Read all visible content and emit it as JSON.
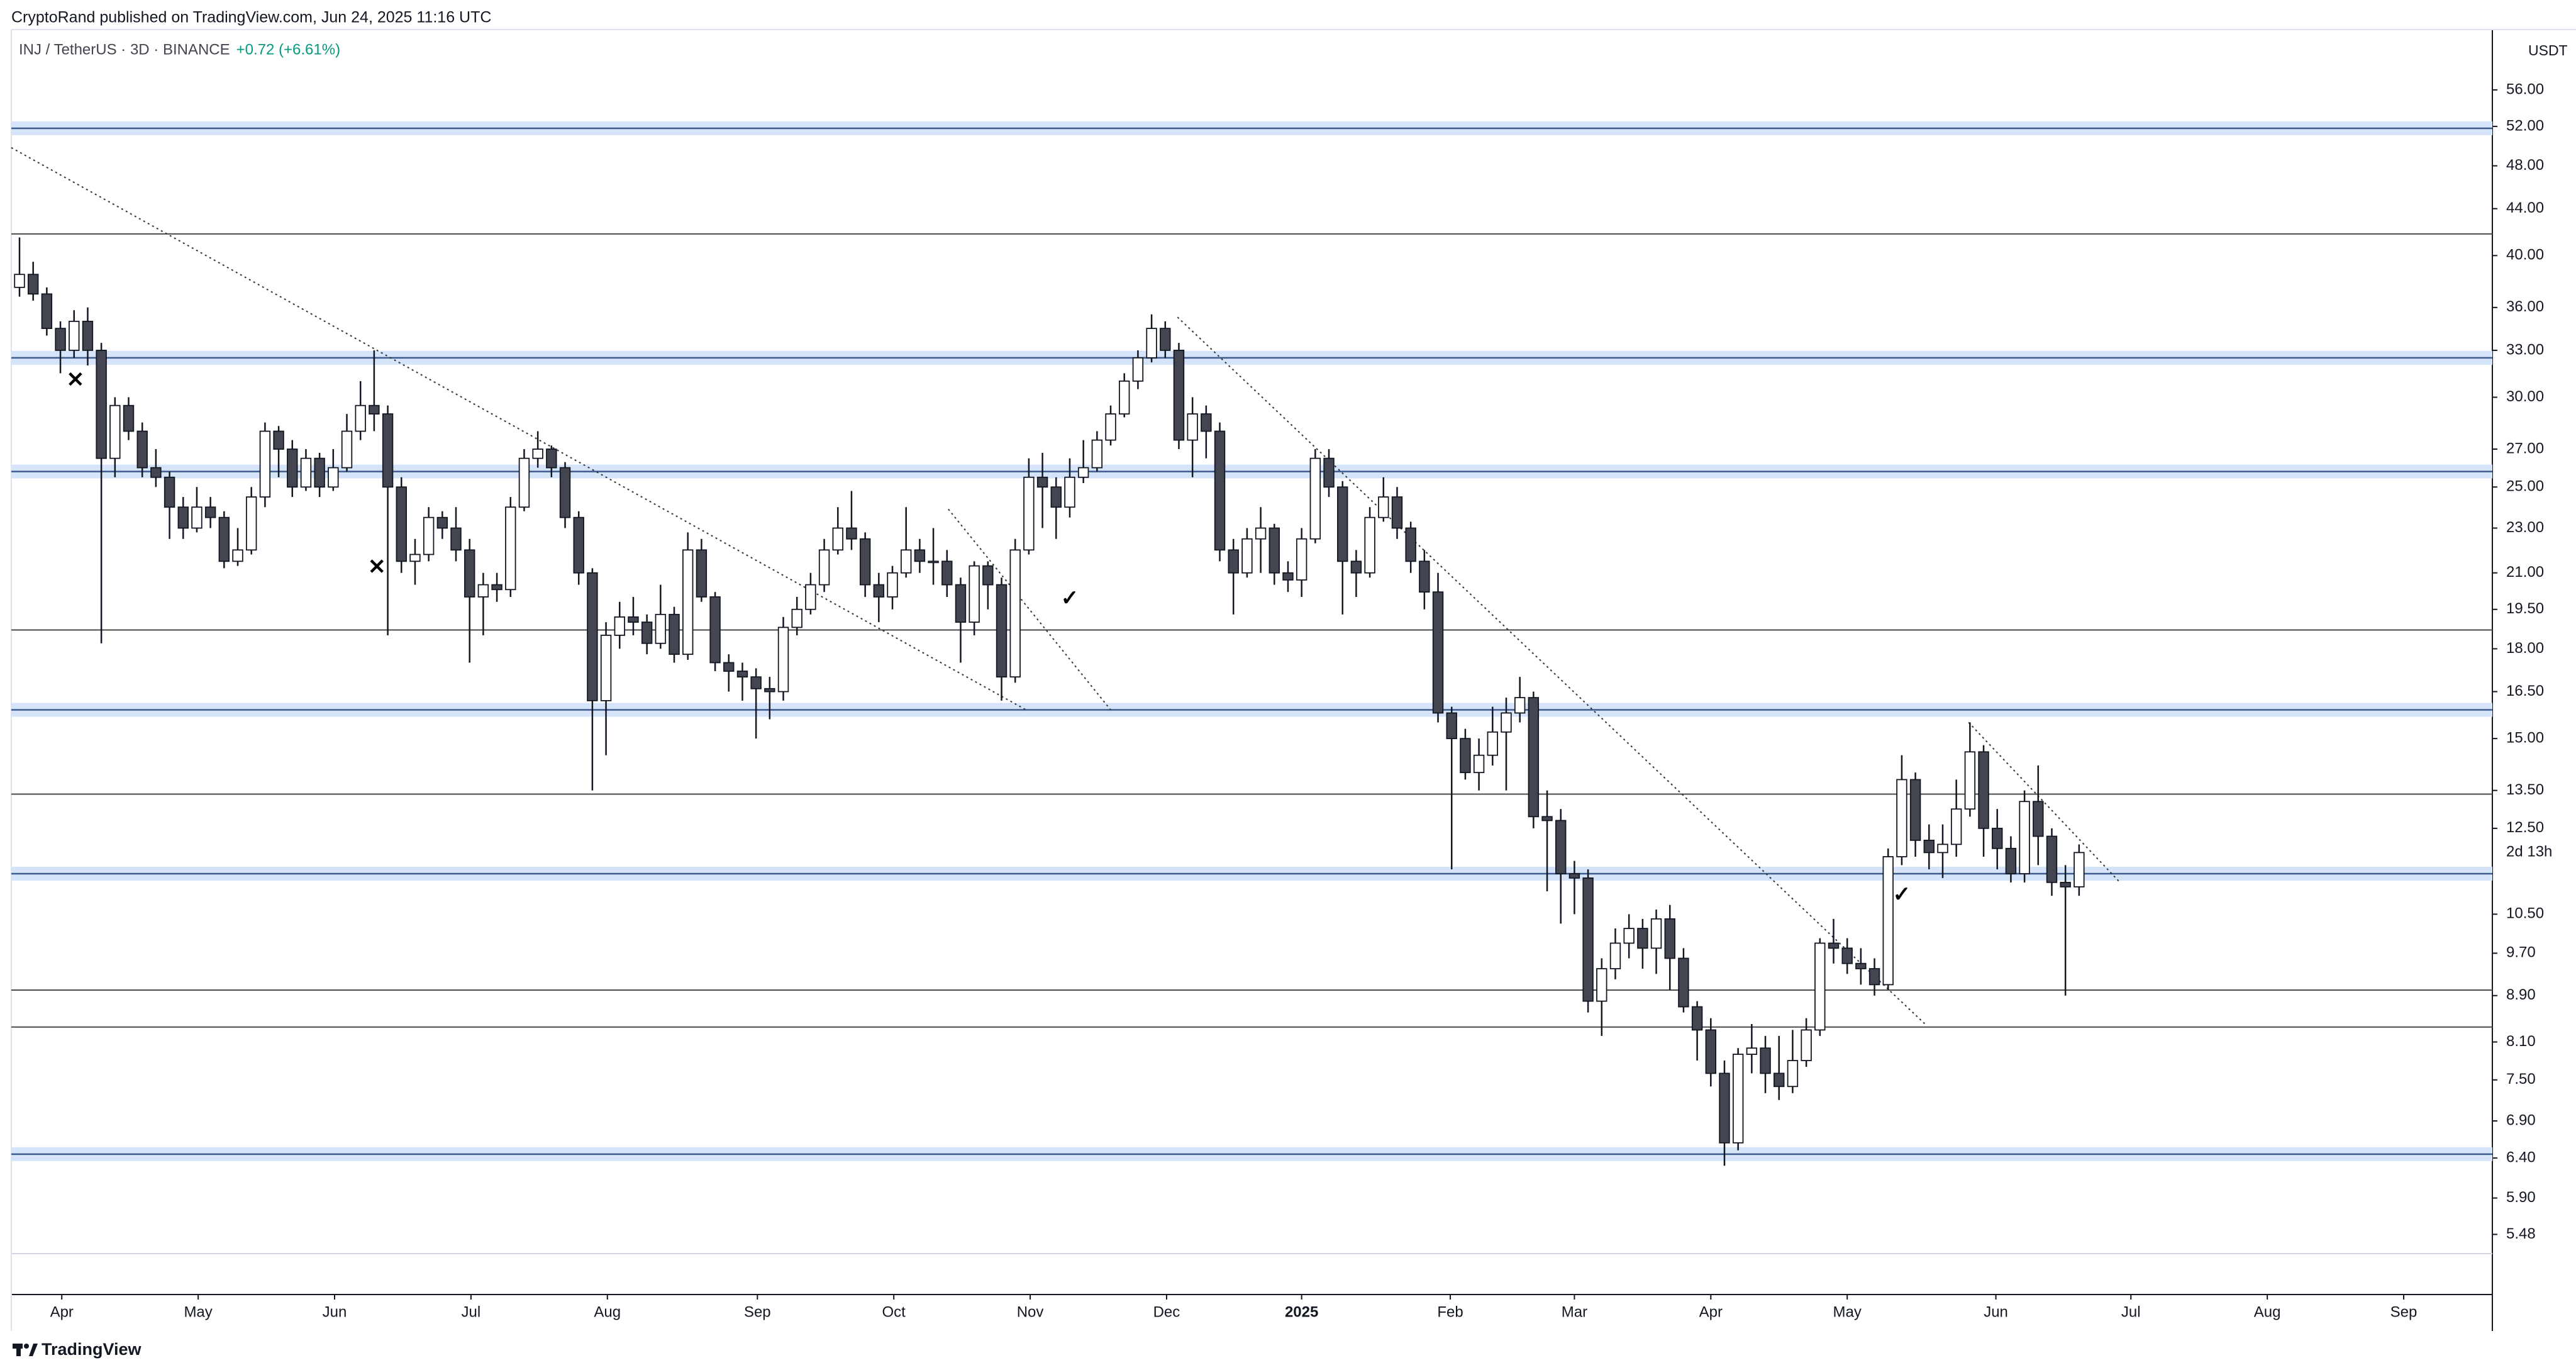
{
  "chart_data": {
    "type": "candlestick",
    "header": "CryptoRand published on TradingView.com, Jun 24, 2025 11:16 UTC",
    "title": "INJ / TetherUS · 3D · BINANCE",
    "change_label": "+0.72 (+6.61%)",
    "y_unit": "USDT",
    "countdown": "2d 13h",
    "brand": "TradingView",
    "log_scale": true,
    "up_color": "#ffffff",
    "down_color": "#434651",
    "line_color": "#131722",
    "change_color": "#089981",
    "open": [
      37.5,
      38.5,
      37,
      34.5,
      33,
      35,
      33,
      26.5,
      29.5,
      28,
      26,
      25.5,
      24,
      23,
      24,
      23.5,
      21.5,
      22,
      24.5,
      28,
      27,
      25,
      26.5,
      25,
      26,
      28,
      29.5,
      29,
      25,
      21.5,
      21.8,
      23.5,
      23,
      22,
      20,
      20.5,
      20.3,
      24,
      26.5,
      27,
      26,
      23.5,
      21,
      16.2,
      18.5,
      19.2,
      19,
      18.2,
      19.3,
      17.8,
      22,
      20,
      17.5,
      17.2,
      17,
      16.6,
      16.5,
      18.8,
      19.5,
      20.5,
      22,
      23,
      22.5,
      20.5,
      20,
      21,
      22,
      21.5,
      21.5,
      20.5,
      19,
      21.3,
      20.5,
      17,
      22,
      25.5,
      25,
      24,
      25.5,
      26,
      27.5,
      29,
      31,
      32.5,
      34.5,
      33,
      27.5,
      29,
      28,
      22,
      21,
      22.5,
      23,
      21,
      20.7,
      22.5,
      26.5,
      25,
      21.5,
      21,
      23.5,
      24.5,
      23,
      21.5,
      20.2,
      15.8,
      15,
      14,
      14.5,
      15.2,
      15.8,
      16.3,
      12.8,
      12.7,
      11.4,
      11.3,
      8.8,
      9.4,
      9.9,
      10.2,
      9.8,
      10.4,
      9.6,
      8.7,
      8.3,
      7.6,
      6.6,
      7.9,
      8.0,
      7.6,
      7.4,
      7.8,
      8.3,
      9.9,
      9.8,
      9.5,
      9.4,
      9.1,
      11.8,
      13.8,
      12.2,
      11.9,
      12.1,
      13,
      14.6,
      12.5,
      12,
      11.4,
      13.2,
      12.3,
      11.2,
      11.1
    ],
    "high": [
      41.5,
      39.5,
      37.5,
      35,
      35.8,
      36,
      33.5,
      30,
      30,
      28.5,
      27,
      25.8,
      24.5,
      25,
      24.5,
      23.8,
      23,
      25,
      28.5,
      28.3,
      27.5,
      27,
      26.8,
      27,
      29,
      31,
      33,
      29.5,
      25.5,
      22.5,
      24,
      23.8,
      24,
      22.5,
      21,
      21,
      24.5,
      27,
      28,
      27.2,
      26.3,
      23.8,
      21.2,
      19,
      19.8,
      20,
      19.3,
      20.5,
      19.6,
      22.8,
      22.5,
      20.2,
      17.8,
      17.5,
      17.3,
      17,
      19.2,
      20,
      21,
      22.5,
      24,
      24.8,
      22.8,
      21,
      21.3,
      24,
      22.5,
      23,
      22,
      20.8,
      21.5,
      21.5,
      20.8,
      22.5,
      26.5,
      26.8,
      25.5,
      26.5,
      27.5,
      28,
      29.5,
      31.5,
      33,
      35.5,
      35,
      33.5,
      30,
      29.5,
      28.5,
      22.5,
      23,
      24,
      23.2,
      21.5,
      23,
      27,
      27,
      25.3,
      22,
      24,
      25.5,
      25,
      23.3,
      22,
      21,
      16,
      15.3,
      15,
      16,
      16.3,
      17,
      16.5,
      13.5,
      13,
      11.7,
      11.5,
      9.6,
      10.2,
      10.5,
      10.4,
      10.6,
      10.7,
      9.8,
      8.8,
      8.5,
      7.8,
      8,
      8.4,
      8.2,
      8.2,
      8.3,
      8.5,
      10,
      10.4,
      10,
      9.8,
      9.6,
      12,
      14.5,
      14,
      12.6,
      12.6,
      13.8,
      15.5,
      14.8,
      13,
      12.3,
      13.5,
      14.2,
      12.5,
      11.6,
      12.1
    ],
    "low": [
      36.8,
      36.5,
      34,
      31.5,
      32.5,
      32,
      18.2,
      25.5,
      27.5,
      25.5,
      25,
      22.5,
      22.5,
      22.8,
      23,
      21.2,
      21.3,
      21.8,
      24,
      25.5,
      24.5,
      24.8,
      24.5,
      24.8,
      25.8,
      27.5,
      28,
      18.5,
      21,
      20.5,
      21.5,
      22.5,
      21.5,
      17.5,
      18.5,
      19.8,
      20,
      23.8,
      26,
      25.5,
      23,
      20.5,
      13.5,
      14.5,
      18,
      18.5,
      17.8,
      18,
      17.5,
      17.6,
      19.8,
      17.2,
      16.5,
      16.2,
      15,
      15.6,
      16.2,
      18.5,
      19.3,
      20.2,
      21.8,
      22,
      20,
      19,
      19.5,
      20.8,
      21,
      20.5,
      20,
      17.5,
      18.5,
      19.5,
      16.2,
      16.8,
      21.8,
      23,
      22.5,
      23.5,
      25.2,
      25.8,
      27.2,
      28.8,
      30.5,
      32.2,
      32.5,
      27,
      25.5,
      26.5,
      21.5,
      19.3,
      20.8,
      21,
      20.5,
      20.2,
      20,
      22.3,
      24.5,
      19.3,
      20,
      20.8,
      23.3,
      22.5,
      21,
      19.5,
      15.5,
      11.5,
      13.8,
      13.5,
      14.2,
      13.5,
      15.5,
      12.5,
      11,
      10.3,
      10.5,
      8.6,
      8.2,
      9.2,
      9.6,
      9.4,
      9.3,
      9,
      8.6,
      7.8,
      7.4,
      6.3,
      6.5,
      7.6,
      7.3,
      7.2,
      7.3,
      7.7,
      8.2,
      9.5,
      9.3,
      9.1,
      8.9,
      9,
      11.6,
      11.8,
      11.5,
      11.3,
      11.8,
      12.8,
      11.8,
      11.5,
      11.2,
      11.2,
      11.6,
      10.9,
      8.9,
      10.9
    ],
    "close": [
      38.5,
      37,
      34.5,
      33,
      35,
      33,
      26.5,
      29.5,
      28,
      26,
      25.5,
      24,
      23,
      24,
      23.5,
      21.5,
      22,
      24.5,
      28,
      27,
      25,
      26.5,
      25,
      26,
      28,
      29.5,
      29,
      25,
      21.5,
      21.8,
      23.5,
      23,
      22,
      20,
      20.5,
      20.3,
      24,
      26.5,
      27,
      26,
      23.5,
      21,
      16.2,
      18.5,
      19.2,
      19,
      18.2,
      19.3,
      17.8,
      22,
      20,
      17.5,
      17.2,
      17,
      16.6,
      16.5,
      18.8,
      19.5,
      20.5,
      22,
      23,
      22.5,
      20.5,
      20,
      21,
      22,
      21.5,
      21.5,
      20.5,
      19,
      21.3,
      20.5,
      17,
      22,
      25.5,
      25,
      24,
      25.5,
      26,
      27.5,
      29,
      31,
      32.5,
      34.5,
      33,
      27.5,
      29,
      28,
      22,
      21,
      22.5,
      23,
      21,
      20.7,
      22.5,
      26.5,
      25,
      21.5,
      21,
      23.5,
      24.5,
      23,
      21.5,
      20.2,
      15.8,
      15,
      14,
      14.5,
      15.2,
      15.8,
      16.3,
      12.8,
      12.7,
      11.4,
      11.3,
      8.8,
      9.4,
      9.9,
      10.2,
      9.8,
      10.4,
      9.6,
      8.7,
      8.3,
      7.6,
      6.6,
      7.9,
      8.0,
      7.6,
      7.4,
      7.8,
      8.3,
      9.9,
      9.8,
      9.5,
      9.4,
      9.1,
      11.8,
      13.8,
      12.2,
      11.9,
      12.1,
      13,
      14.6,
      12.5,
      12,
      11.4,
      13.2,
      12.3,
      11.2,
      11.1,
      11.9
    ],
    "ylim": [
      5.27,
      63.3
    ],
    "yticks": [
      {
        "value": 56,
        "label": "56.00"
      },
      {
        "value": 52,
        "label": "52.00"
      },
      {
        "value": 48,
        "label": "48.00"
      },
      {
        "value": 44,
        "label": "44.00"
      },
      {
        "value": 40,
        "label": "40.00"
      },
      {
        "value": 36,
        "label": "36.00"
      },
      {
        "value": 33,
        "label": "33.00"
      },
      {
        "value": 30,
        "label": "30.00"
      },
      {
        "value": 27,
        "label": "27.00"
      },
      {
        "value": 25,
        "label": "25.00"
      },
      {
        "value": 23,
        "label": "23.00"
      },
      {
        "value": 21,
        "label": "21.00"
      },
      {
        "value": 19.5,
        "label": "19.50"
      },
      {
        "value": 18,
        "label": "18.00"
      },
      {
        "value": 16.5,
        "label": "16.50"
      },
      {
        "value": 15,
        "label": "15.00"
      },
      {
        "value": 13.5,
        "label": "13.50"
      },
      {
        "value": 12.5,
        "label": "12.50"
      },
      {
        "value": 10.5,
        "label": "10.50"
      },
      {
        "value": 9.7,
        "label": "9.70"
      },
      {
        "value": 8.9,
        "label": "8.90"
      },
      {
        "value": 8.1,
        "label": "8.10"
      },
      {
        "value": 7.5,
        "label": "7.50"
      },
      {
        "value": 6.9,
        "label": "6.90"
      },
      {
        "value": 6.4,
        "label": "6.40"
      },
      {
        "value": 5.9,
        "label": "5.90"
      },
      {
        "value": 5.48,
        "label": "5.48"
      }
    ],
    "xlim": [
      -0.6,
      181.3
    ],
    "xticks": [
      {
        "value": 3.1,
        "label": "Apr"
      },
      {
        "value": 13.1,
        "label": "May"
      },
      {
        "value": 23.1,
        "label": "Jun"
      },
      {
        "value": 33.1,
        "label": "Jul"
      },
      {
        "value": 43.1,
        "label": "Aug"
      },
      {
        "value": 54.1,
        "label": "Sep"
      },
      {
        "value": 64.1,
        "label": "Oct"
      },
      {
        "value": 74.1,
        "label": "Nov"
      },
      {
        "value": 84.1,
        "label": "Dec"
      },
      {
        "value": 94.0,
        "label": "2025"
      },
      {
        "value": 104.9,
        "label": "Feb"
      },
      {
        "value": 114.0,
        "label": "Mar"
      },
      {
        "value": 124.0,
        "label": "Apr"
      },
      {
        "value": 134.0,
        "label": "May"
      },
      {
        "value": 144.9,
        "label": "Jun"
      },
      {
        "value": 154.8,
        "label": "Jul"
      },
      {
        "value": 164.8,
        "label": "Aug"
      },
      {
        "value": 174.8,
        "label": "Sep"
      }
    ],
    "levels": [
      41.8,
      18.7,
      13.4,
      9.0,
      8.35
    ],
    "zones": [
      51.8,
      32.5,
      25.8,
      15.9,
      11.4,
      6.45
    ],
    "trendlines": [
      {
        "x": [
          -0.6,
          73.8
        ],
        "y": [
          49.8,
          15.9
        ]
      },
      {
        "x": [
          68.1,
          80
        ],
        "y": [
          23.9,
          15.9
        ]
      },
      {
        "x": [
          84.9,
          139.8
        ],
        "y": [
          35.3,
          8.38
        ]
      },
      {
        "x": [
          142.9,
          154
        ],
        "y": [
          15.5,
          11.2
        ]
      }
    ],
    "markers": [
      {
        "x": 4.1,
        "y": 31,
        "symbol": "✕"
      },
      {
        "x": 26.2,
        "y": 21.2,
        "symbol": "✕"
      },
      {
        "x": 77,
        "y": 19.9,
        "symbol": "✓"
      },
      {
        "x": 138,
        "y": 10.9,
        "symbol": "✓"
      }
    ]
  }
}
